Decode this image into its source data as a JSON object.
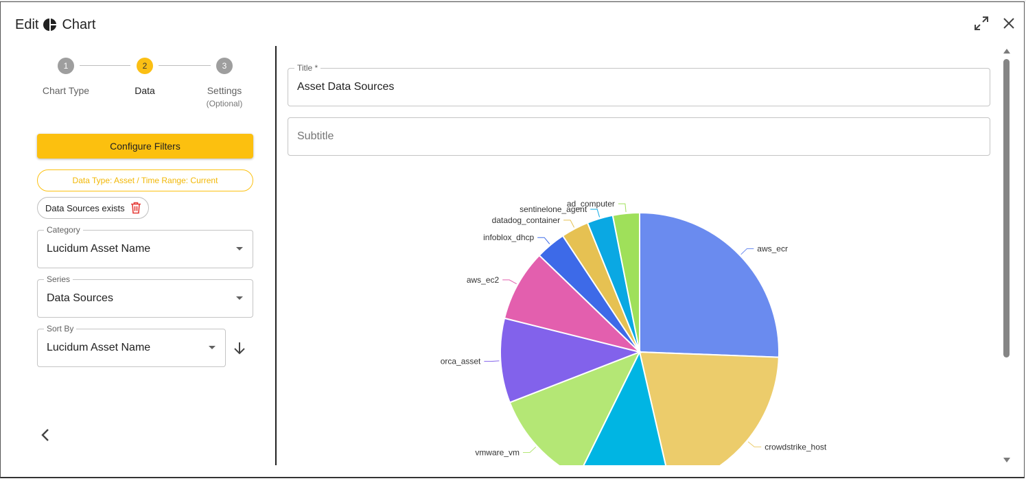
{
  "header": {
    "title_prefix": "Edit",
    "title_suffix": "Chart",
    "chart_icon": "pie-chart-icon",
    "expand_icon": "expand-icon",
    "close_icon": "close-icon"
  },
  "stepper": {
    "steps": [
      {
        "number": "1",
        "label": "Chart Type",
        "sub": ""
      },
      {
        "number": "2",
        "label": "Data",
        "sub": ""
      },
      {
        "number": "3",
        "label": "Settings",
        "sub": "(Optional)"
      }
    ],
    "active_color": "#fbbf14"
  },
  "filters": {
    "configure_label": "Configure Filters",
    "data_type_chip": "Data Type: Asset / Time Range: Current",
    "data_sources_chip": "Data Sources exists",
    "accent": "#fcc00f"
  },
  "fields": {
    "category": {
      "label": "Category",
      "value": "Lucidum Asset Name"
    },
    "series": {
      "label": "Series",
      "value": "Data Sources"
    },
    "sort_by": {
      "label": "Sort By",
      "value": "Lucidum Asset Name"
    }
  },
  "main": {
    "title_field": {
      "label": "Title *",
      "value": "Asset Data Sources"
    },
    "subtitle_field": {
      "placeholder": "Subtitle"
    }
  },
  "chart_data": {
    "type": "pie",
    "categories": [
      "aws_ecr",
      "crowdstrike_host",
      "",
      "vmware_vm",
      "orca_asset",
      "aws_ec2",
      "infoblox_dhcp",
      "datadog_container",
      "sentinelone_agent",
      "ad_computer"
    ],
    "values": [
      25.6,
      20.8,
      10.9,
      11.8,
      9.8,
      8.3,
      3.5,
      3.2,
      3.0,
      3.1
    ],
    "colors": [
      "#6a8bef",
      "#eccc6b",
      "#00b5e3",
      "#b4e775",
      "#8262eb",
      "#e35fae",
      "#3d6ae8",
      "#e6c152",
      "#0aa8e3",
      "#9fe05a"
    ],
    "title": "",
    "legend": "none"
  }
}
